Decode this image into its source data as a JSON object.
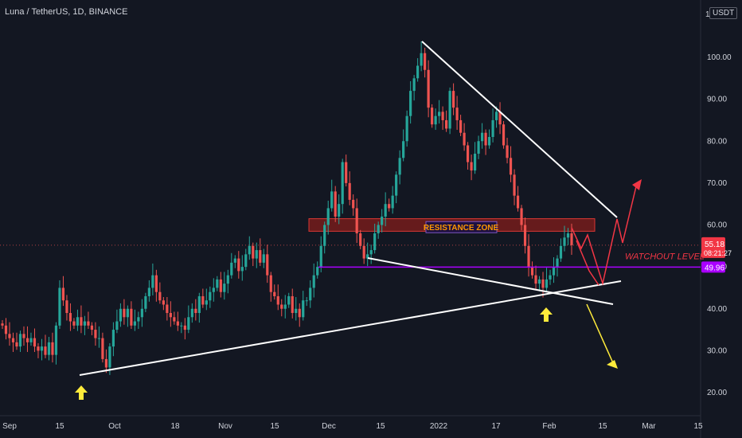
{
  "header": {
    "title": "Luna / TetherUS, 1D, BINANCE"
  },
  "currency_button": "USDT",
  "axis_top_label": "1",
  "colors": {
    "background": "#131722",
    "up": "#26a69a",
    "down": "#ef5350",
    "trendline": "#ffffff",
    "resistance_fill": "#6b1c1c",
    "resistance_stroke": "#e53935",
    "support": "#aa00ff",
    "arrow_up": "#ffeb3b",
    "projection_red": "#f23645",
    "projection_yellow": "#ffeb3b"
  },
  "chart_data": {
    "type": "candlestick",
    "pair": "Luna / TetherUS",
    "interval": "1D",
    "exchange": "BINANCE",
    "y_ticks": [
      "100.00",
      "90.00",
      "80.00",
      "70.00",
      "60.00",
      "50.00",
      "40.00",
      "30.00",
      "20.00"
    ],
    "x_ticks": [
      "Sep",
      "15",
      "Oct",
      "18",
      "Nov",
      "15",
      "Dec",
      "15",
      "2022",
      "17",
      "Feb",
      "15",
      "Mar",
      "15"
    ],
    "ylim": [
      17,
      115
    ],
    "price_label": {
      "value": "55.18",
      "countdown": "08:21:27"
    },
    "level_label": {
      "value": "49.96"
    },
    "annotations": {
      "resistance": "RESISTANCE ZONE",
      "watchout": "WATCHOUT LEVEL"
    },
    "resistance_zone": [
      58.5,
      61.5
    ],
    "watchout_level": 49.96,
    "series_close": [
      36,
      34,
      33,
      32,
      31,
      34,
      33,
      32,
      33,
      31,
      30,
      31,
      29,
      32,
      29,
      36,
      45,
      42,
      39,
      37,
      36,
      38,
      36,
      37,
      36,
      35,
      33,
      33,
      28,
      26,
      31,
      35,
      37,
      40,
      38,
      40,
      36,
      37,
      38,
      40,
      43,
      45,
      48,
      44,
      42,
      41,
      39,
      38,
      37,
      36,
      36,
      35,
      38,
      40,
      39,
      43,
      41,
      42,
      44,
      45,
      47,
      44,
      46,
      48,
      51,
      52,
      49,
      50,
      53,
      55,
      52,
      54,
      51,
      53,
      48,
      44,
      43,
      41,
      40,
      41,
      43,
      39,
      40,
      38,
      42,
      42,
      45,
      48,
      50,
      55,
      60,
      64,
      68,
      62,
      65,
      75,
      70,
      66,
      64,
      58,
      55,
      52,
      53,
      54,
      58,
      60,
      62,
      65,
      64,
      67,
      72,
      76,
      80,
      86,
      92,
      95,
      98,
      101,
      97,
      88,
      84,
      86,
      87,
      85,
      83,
      92,
      88,
      85,
      82,
      79,
      75,
      73,
      77,
      80,
      82,
      79,
      81,
      85,
      87,
      84,
      79,
      76,
      72,
      67,
      64,
      60,
      55,
      50,
      48,
      46,
      47,
      45,
      47,
      48,
      50,
      52,
      55,
      57,
      58,
      55.18
    ]
  }
}
